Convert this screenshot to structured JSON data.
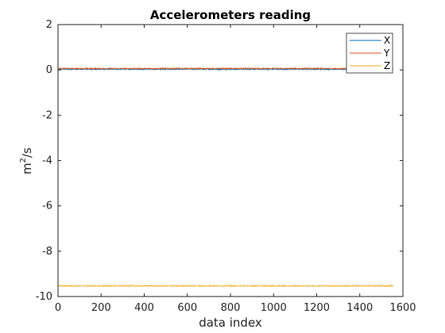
{
  "chart_data": {
    "type": "line",
    "title": "Accelerometers reading",
    "xlabel": "data index",
    "ylabel": "m",
    "ylabel_sup": "2",
    "ylabel_tail": "/s",
    "xlim": [
      0,
      1600
    ],
    "ylim": [
      -10,
      2
    ],
    "xticks": [
      0,
      200,
      400,
      600,
      800,
      1000,
      1200,
      1400,
      1600
    ],
    "yticks": [
      2,
      0,
      -2,
      -4,
      -6,
      -8,
      -10
    ],
    "grid": false,
    "legend_position": "top-right",
    "n_points": 1555,
    "series": [
      {
        "name": "X",
        "color": "#0072BD",
        "mean": 0.03,
        "noise": 0.03
      },
      {
        "name": "Y",
        "color": "#D95319",
        "mean": 0.06,
        "noise": 0.03
      },
      {
        "name": "Z",
        "color": "#EDB120",
        "mean": -9.53,
        "noise": 0.03
      }
    ]
  }
}
